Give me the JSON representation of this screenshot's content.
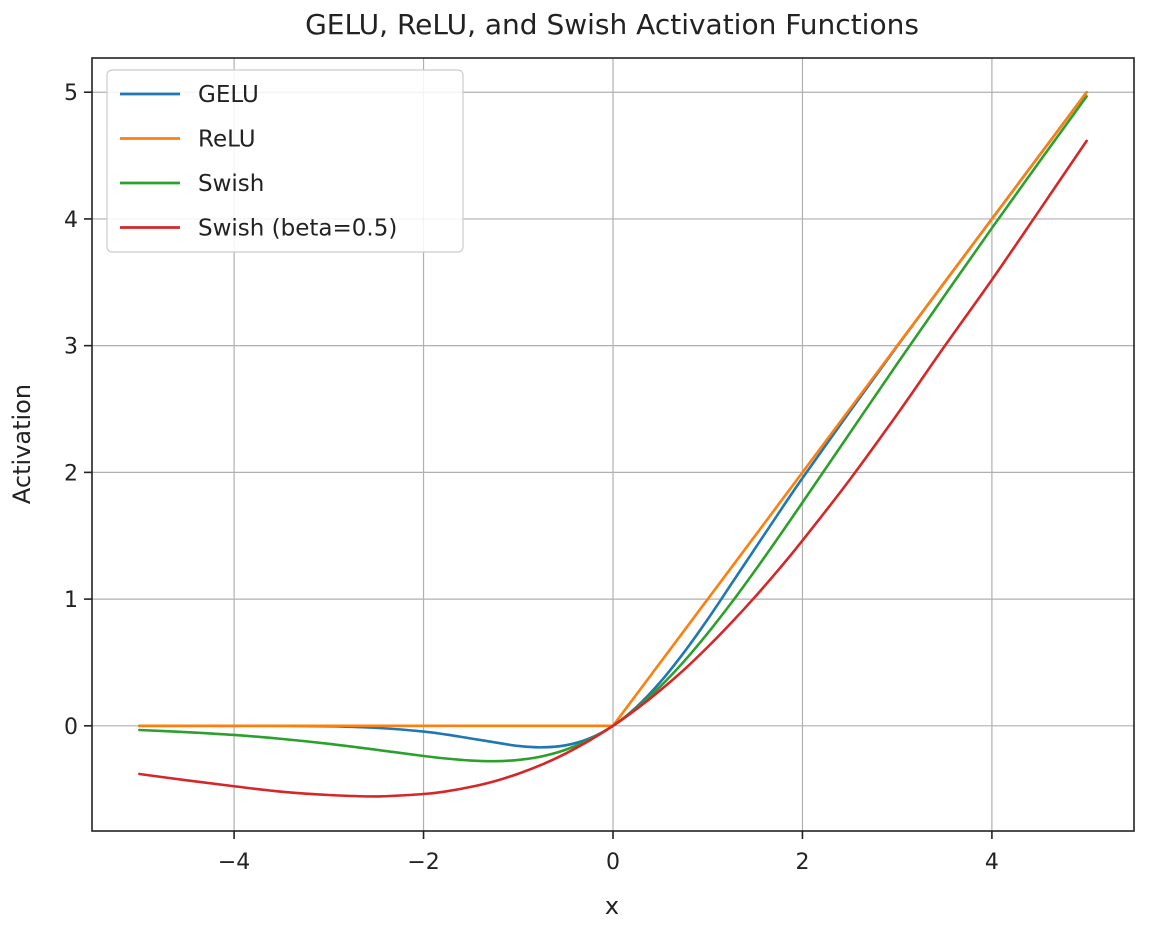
{
  "chart_data": {
    "type": "line",
    "title": "GELU, ReLU, and Swish Activation Functions",
    "xlabel": "x",
    "ylabel": "Activation",
    "xlim": [
      -5.5,
      5.5
    ],
    "ylim": [
      -0.83,
      5.27
    ],
    "xticks": [
      -4,
      -2,
      0,
      2,
      4
    ],
    "xtick_labels": [
      "−4",
      "−2",
      "0",
      "2",
      "4"
    ],
    "yticks": [
      0,
      1,
      2,
      3,
      4,
      5
    ],
    "ytick_labels": [
      "0",
      "1",
      "2",
      "3",
      "4",
      "5"
    ],
    "grid": true,
    "legend_position": "upper-left",
    "x": [
      -5,
      -4.5,
      -4,
      -3.5,
      -3,
      -2.5,
      -2,
      -1.75,
      -1.5,
      -1.25,
      -1,
      -0.75,
      -0.5,
      -0.25,
      0,
      0.25,
      0.5,
      0.75,
      1,
      1.25,
      1.5,
      1.75,
      2,
      2.5,
      3,
      3.5,
      4,
      4.5,
      5
    ],
    "series": [
      {
        "name": "GELU",
        "color": "#1f77b4",
        "values": [
          0,
          0,
          0,
          0,
          -0.004,
          -0.016,
          -0.045,
          -0.07,
          -0.1,
          -0.13,
          -0.159,
          -0.17,
          -0.154,
          -0.1,
          0,
          0.15,
          0.346,
          0.58,
          0.841,
          1.12,
          1.4,
          1.68,
          1.955,
          2.48,
          2.996,
          3.5,
          4,
          4.5,
          5
        ]
      },
      {
        "name": "ReLU",
        "color": "#ff7f0e",
        "values": [
          0,
          0,
          0,
          0,
          0,
          0,
          0,
          0,
          0,
          0,
          0,
          0,
          0,
          0,
          0,
          0.25,
          0.5,
          0.75,
          1,
          1.25,
          1.5,
          1.75,
          2,
          2.5,
          3,
          3.5,
          4,
          4.5,
          5
        ]
      },
      {
        "name": "Swish",
        "color": "#2ca02c",
        "values": [
          -0.033,
          -0.05,
          -0.072,
          -0.103,
          -0.142,
          -0.189,
          -0.238,
          -0.259,
          -0.274,
          -0.279,
          -0.269,
          -0.241,
          -0.189,
          -0.109,
          0,
          0.141,
          0.311,
          0.509,
          0.731,
          0.971,
          1.226,
          1.491,
          1.762,
          2.31,
          2.857,
          3.395,
          3.928,
          4.45,
          4.967
        ]
      },
      {
        "name": "Swish (beta=0.5)",
        "color": "#d62728",
        "values": [
          -0.38,
          -0.43,
          -0.477,
          -0.52,
          -0.546,
          -0.557,
          -0.538,
          -0.516,
          -0.482,
          -0.437,
          -0.378,
          -0.306,
          -0.219,
          -0.117,
          0,
          0.133,
          0.281,
          0.443,
          0.622,
          0.814,
          1.018,
          1.234,
          1.462,
          1.943,
          2.458,
          2.995,
          3.52,
          4.066,
          4.616
        ]
      }
    ]
  }
}
